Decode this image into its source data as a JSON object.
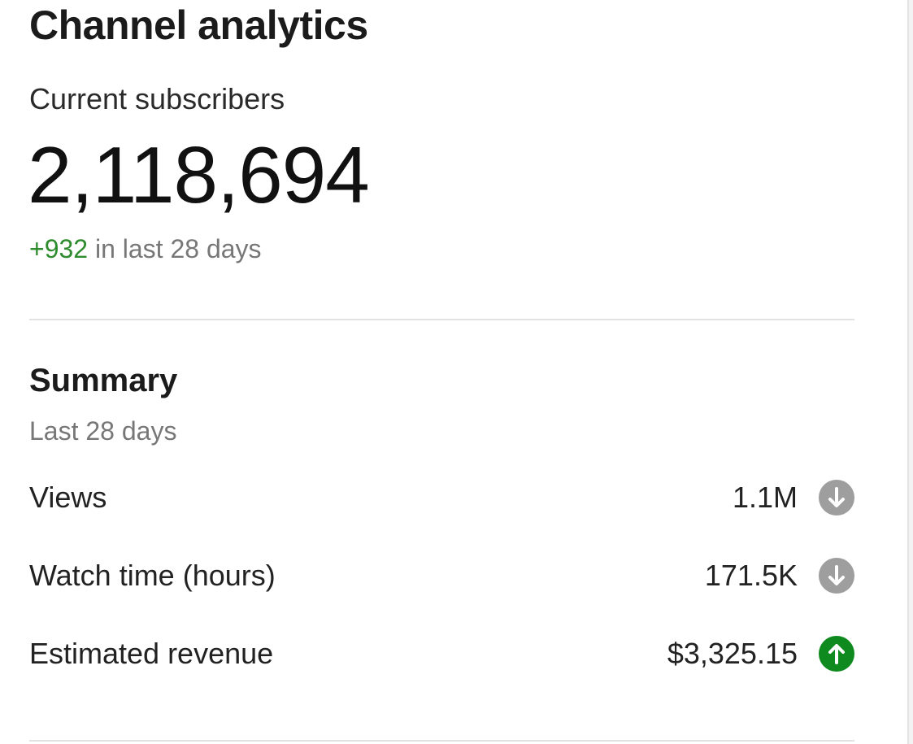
{
  "header": {
    "title": "Channel analytics"
  },
  "subscribers": {
    "label": "Current subscribers",
    "count": "2,118,694",
    "change": "+932",
    "change_period": "in last 28 days",
    "change_color": "#2e8b2e"
  },
  "summary": {
    "title": "Summary",
    "period": "Last 28 days",
    "metrics": [
      {
        "label": "Views",
        "value": "1.1M",
        "trend": "down",
        "trend_icon": "arrow-down-circle-icon",
        "trend_color": "#9e9e9e"
      },
      {
        "label": "Watch time (hours)",
        "value": "171.5K",
        "trend": "down",
        "trend_icon": "arrow-down-circle-icon",
        "trend_color": "#9e9e9e"
      },
      {
        "label": "Estimated revenue",
        "value": "$3,325.15",
        "trend": "up",
        "trend_icon": "arrow-up-circle-icon",
        "trend_color": "#0f8a1f"
      }
    ]
  }
}
